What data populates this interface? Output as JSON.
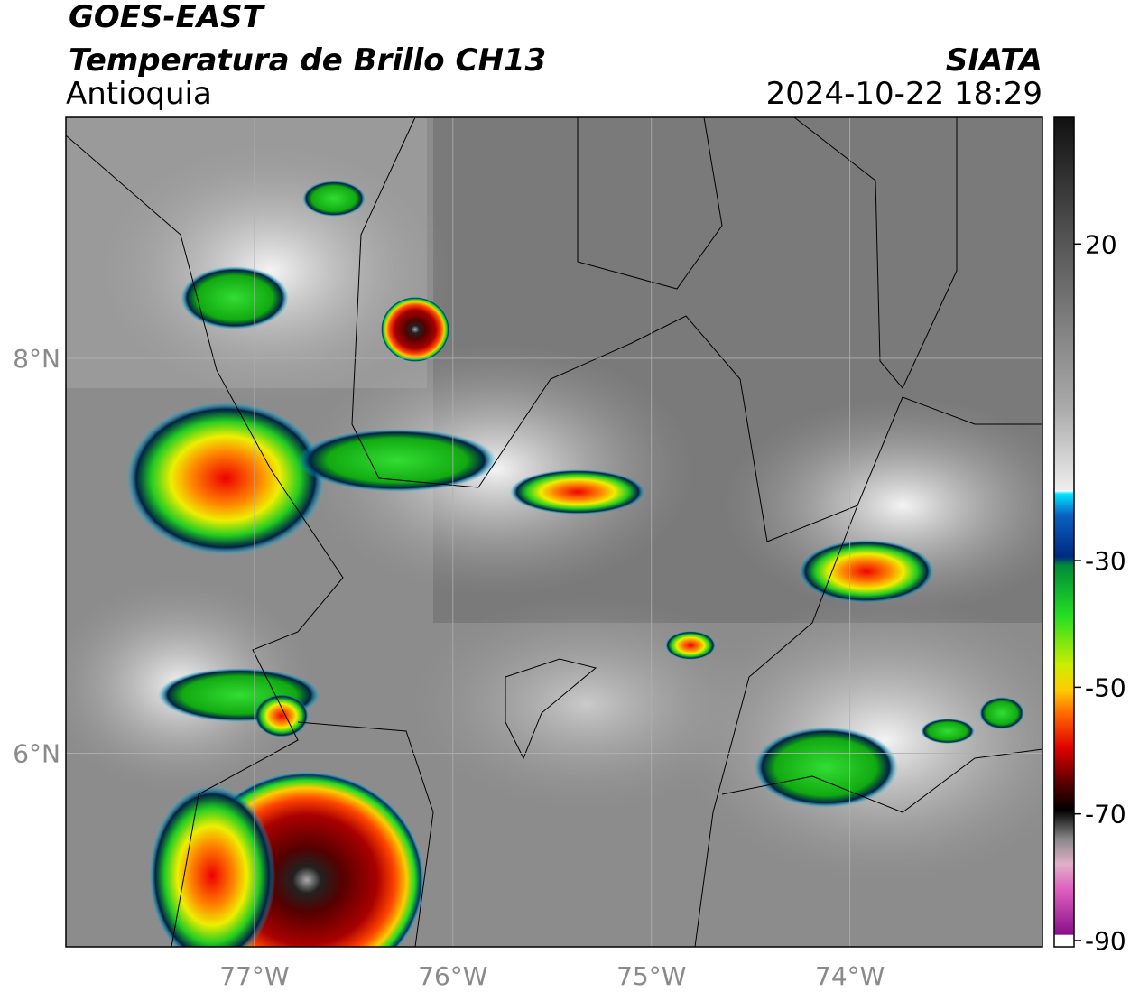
{
  "header": {
    "satellite": "GOES-EAST",
    "product": "Temperatura de Brillo CH13",
    "region": "Antioquia",
    "source": "SIATA",
    "datetime": "2024-10-22 18:29"
  },
  "map": {
    "xlim": [
      -77.95,
      -73.03
    ],
    "ylim": [
      5.02,
      9.22
    ],
    "xticks": [
      {
        "value": -77,
        "label": "77°W"
      },
      {
        "value": -76,
        "label": "76°W"
      },
      {
        "value": -75,
        "label": "75°W"
      },
      {
        "value": -74,
        "label": "74°W"
      }
    ],
    "yticks": [
      {
        "value": 8,
        "label": "8°N"
      },
      {
        "value": 6,
        "label": "6°N"
      }
    ],
    "grid": true
  },
  "colorbar": {
    "range": [
      -91,
      40
    ],
    "ticks": [
      20,
      -30,
      -50,
      -70,
      -90
    ]
  }
}
